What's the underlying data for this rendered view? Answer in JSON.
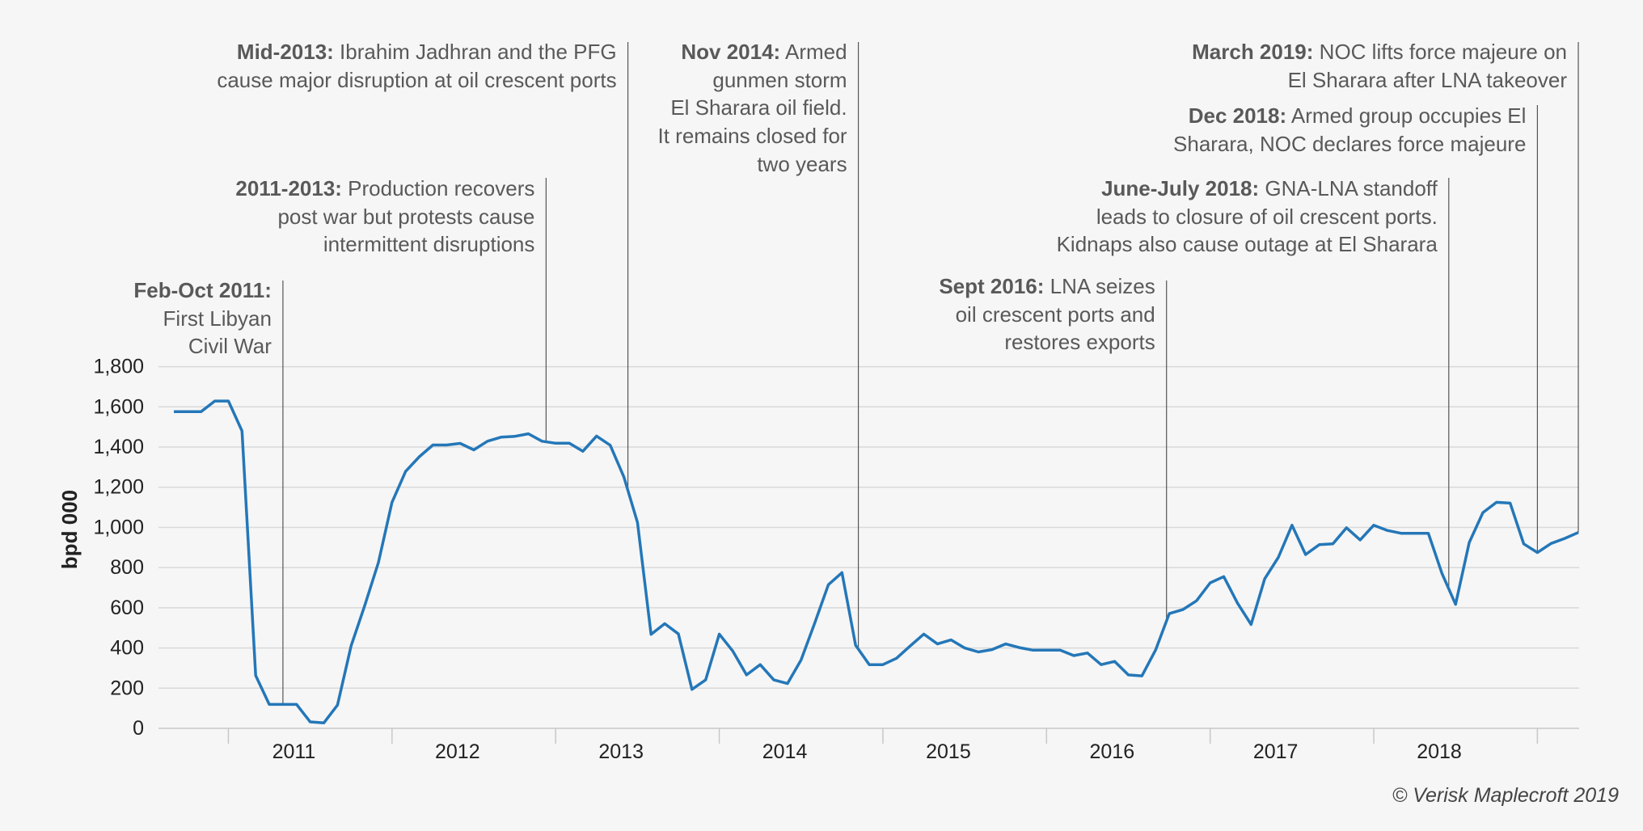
{
  "chart_data": {
    "type": "line",
    "title": "",
    "xlabel": "",
    "ylabel": "bpd 000",
    "ylim": [
      0,
      1800
    ],
    "yticks": [
      "0",
      "200",
      "400",
      "600",
      "800",
      "1,000",
      "1,200",
      "1,400",
      "1,600",
      "1,800"
    ],
    "ytick_values": [
      0,
      200,
      400,
      600,
      800,
      1000,
      1200,
      1400,
      1600,
      1800
    ],
    "xtick_labels": [
      "2011",
      "2012",
      "2013",
      "2014",
      "2015",
      "2016",
      "2017",
      "2018"
    ],
    "grid": "horizontal",
    "line_color": "#2477b8",
    "x": [
      "2010-09",
      "2010-10",
      "2010-11",
      "2010-12",
      "2011-01",
      "2011-02",
      "2011-03",
      "2011-04",
      "2011-05",
      "2011-06",
      "2011-07",
      "2011-08",
      "2011-09",
      "2011-10",
      "2011-11",
      "2011-12",
      "2012-01",
      "2012-02",
      "2012-03",
      "2012-04",
      "2012-05",
      "2012-06",
      "2012-07",
      "2012-08",
      "2012-09",
      "2012-10",
      "2012-11",
      "2012-12",
      "2013-01",
      "2013-02",
      "2013-03",
      "2013-04",
      "2013-05",
      "2013-06",
      "2013-07",
      "2013-08",
      "2013-09",
      "2013-10",
      "2013-11",
      "2013-12",
      "2014-01",
      "2014-02",
      "2014-03",
      "2014-04",
      "2014-05",
      "2014-06",
      "2014-07",
      "2014-08",
      "2014-09",
      "2014-10",
      "2014-11",
      "2014-12",
      "2015-01",
      "2015-02",
      "2015-03",
      "2015-04",
      "2015-05",
      "2015-06",
      "2015-07",
      "2015-08",
      "2015-09",
      "2015-10",
      "2015-11",
      "2015-12",
      "2016-01",
      "2016-02",
      "2016-03",
      "2016-04",
      "2016-05",
      "2016-06",
      "2016-07",
      "2016-08",
      "2016-09",
      "2016-10",
      "2016-11",
      "2016-12",
      "2017-01",
      "2017-02",
      "2017-03",
      "2017-04",
      "2017-05",
      "2017-06",
      "2017-07",
      "2017-08",
      "2017-09",
      "2017-10",
      "2017-11",
      "2017-12",
      "2018-01",
      "2018-02",
      "2018-03",
      "2018-04",
      "2018-05",
      "2018-06",
      "2018-07",
      "2018-08",
      "2018-09",
      "2018-10",
      "2018-11",
      "2018-12",
      "2019-01",
      "2019-02",
      "2019-03",
      "2019-04"
    ],
    "values": [
      1576,
      1576,
      1576,
      1629,
      1629,
      1480,
      263,
      119,
      119,
      119,
      32,
      27,
      116,
      410,
      611,
      825,
      1125,
      1279,
      1352,
      1410,
      1410,
      1418,
      1386,
      1429,
      1449,
      1453,
      1466,
      1429,
      1419,
      1419,
      1379,
      1455,
      1409,
      1252,
      1025,
      468,
      521,
      470,
      194,
      241,
      469,
      384,
      266,
      317,
      241,
      223,
      340,
      524,
      715,
      775,
      413,
      317,
      317,
      349,
      410,
      469,
      420,
      440,
      400,
      380,
      392,
      420,
      402,
      389,
      389,
      389,
      362,
      375,
      317,
      333,
      266,
      261,
      390,
      571,
      591,
      635,
      724,
      755,
      624,
      517,
      744,
      851,
      1011,
      865,
      914,
      918,
      998,
      938,
      1011,
      985,
      971,
      971,
      971,
      771,
      617,
      925,
      1074,
      1125,
      1121,
      918,
      875,
      920,
      945,
      975
    ],
    "annotations": [
      {
        "label": "Feb-Oct 2011:",
        "lines": [
          "",
          "First Libyan",
          "Civil War"
        ]
      },
      {
        "label": "2011-2013:",
        "lines": [
          " Production recovers",
          "post war but protests cause",
          "intermittent disruptions"
        ]
      },
      {
        "label": "Mid-2013:",
        "lines": [
          " Ibrahim Jadhran and the PFG",
          "cause major disruption at oil crescent ports"
        ]
      },
      {
        "label": "Nov 2014:",
        "lines": [
          " Armed",
          "gunmen storm",
          "El Sharara oil field.",
          "It remains closed for",
          "two years"
        ]
      },
      {
        "label": "Sept 2016:",
        "lines": [
          " LNA seizes",
          "oil crescent ports and",
          "restores exports"
        ]
      },
      {
        "label": "June-July 2018:",
        "lines": [
          " GNA-LNA standoff",
          "leads to closure of oil crescent ports.",
          "Kidnaps also cause outage at El Sharara"
        ]
      },
      {
        "label": "Dec 2018:",
        "lines": [
          " Armed group occupies El",
          "Sharara, NOC declares force majeure"
        ]
      },
      {
        "label": "March 2019:",
        "lines": [
          " NOC lifts force majeure on",
          "El Sharara after LNA takeover"
        ]
      }
    ]
  },
  "footer": {
    "copyright": "© Verisk Maplecroft 2019"
  }
}
